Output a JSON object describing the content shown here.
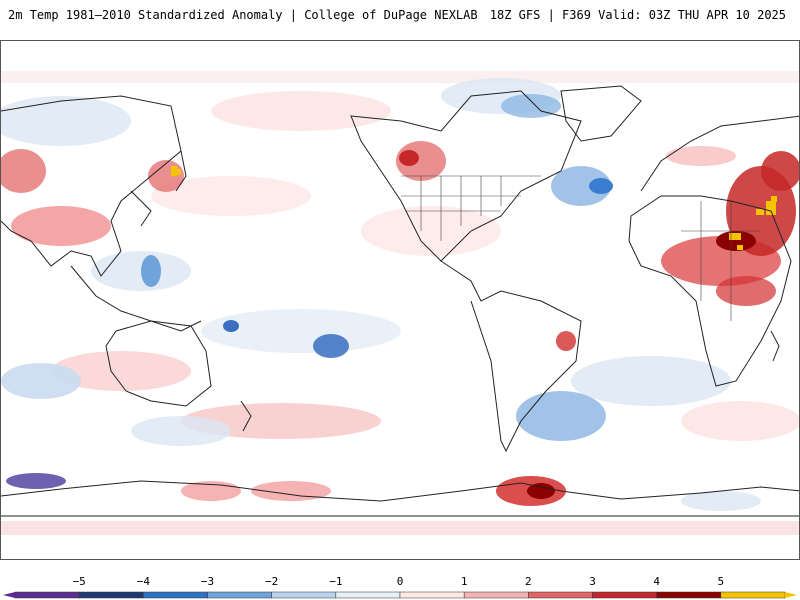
{
  "header": {
    "title_left": "2m Temp 1981–2010 Standardized Anomaly | College of DuPage NEXLAB",
    "title_right": "18Z GFS | F369 Valid: 03Z THU APR 10 2025"
  },
  "colorbar": {
    "ticks": [
      "−5",
      "−4",
      "−3",
      "−2",
      "−1",
      "0",
      "1",
      "2",
      "3",
      "4",
      "5"
    ],
    "colors": [
      "#5b2c8f",
      "#1f3a73",
      "#2f72c4",
      "#6fa3d9",
      "#b9d3ec",
      "#e6eef8",
      "#fde8e8",
      "#f2b3b3",
      "#e06666",
      "#c0272d",
      "#8b0000",
      "#f5c400"
    ]
  },
  "map": {
    "projection": "equirectangular, centered on 180°",
    "warm_anomaly_color": "#d32f2f",
    "cold_anomaly_color": "#2f72c4",
    "extreme_color": "#f5c400"
  }
}
